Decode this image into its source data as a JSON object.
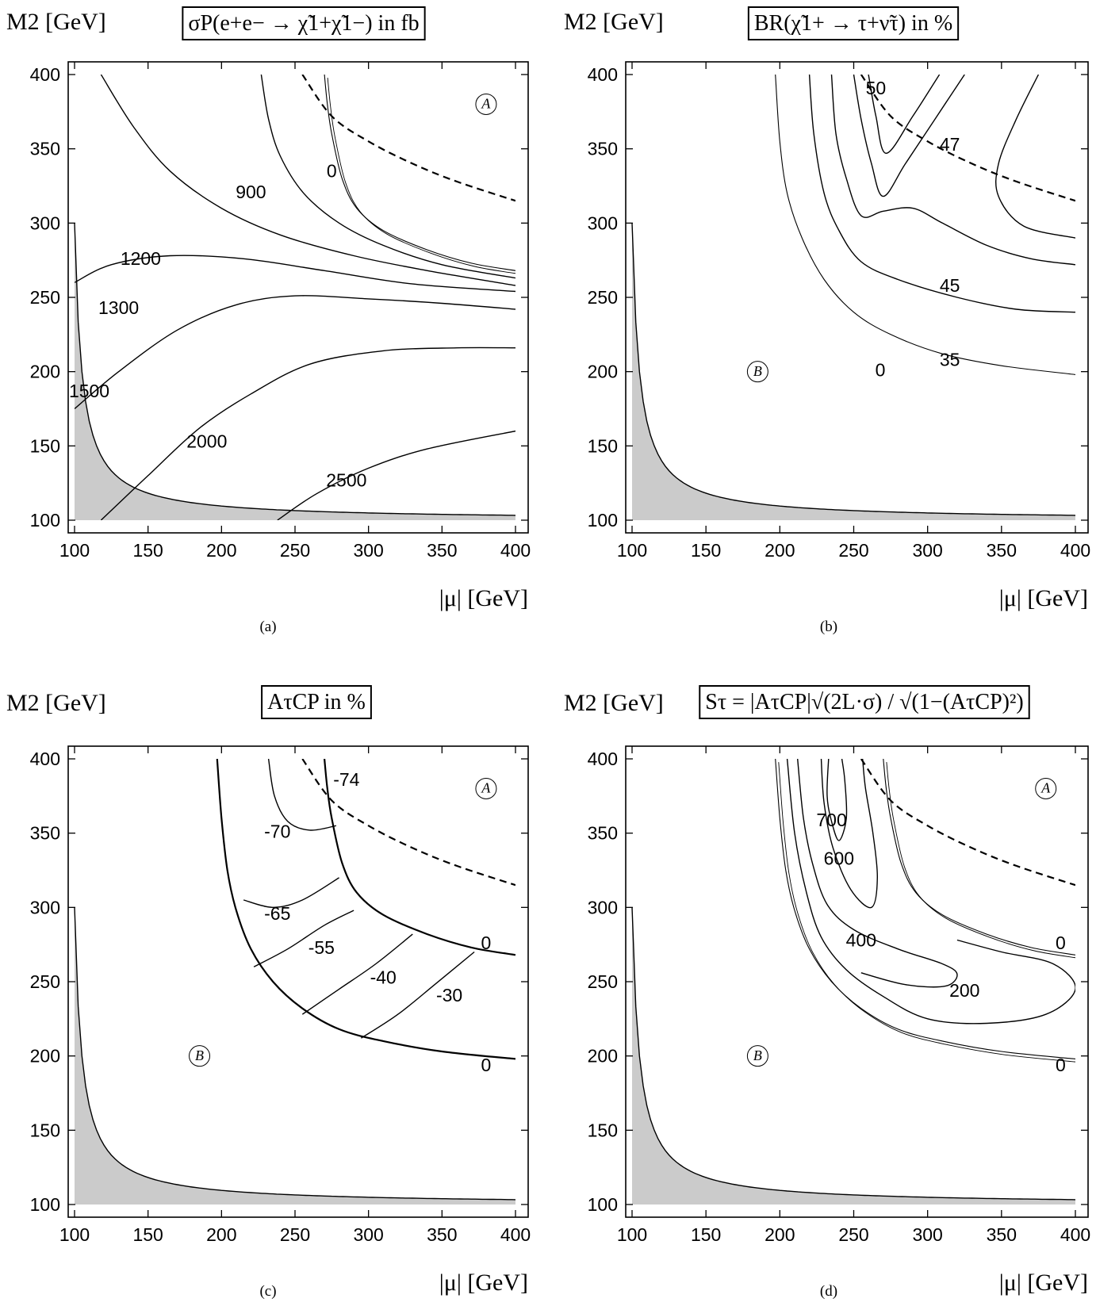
{
  "panels": [
    {
      "id": "a",
      "caption": "(a)",
      "title": "σP(e+e− → χ̃1+χ̃1−) in fb",
      "ylabel": "M2 [GeV]",
      "xlabel": "|μ| [GeV]",
      "region_marks": [
        "A"
      ],
      "contour_labels": [
        {
          "text": "0",
          "mu": 275,
          "m2": 334
        },
        {
          "text": "900",
          "mu": 220,
          "m2": 320
        },
        {
          "text": "1200",
          "mu": 145,
          "m2": 275
        },
        {
          "text": "1300",
          "mu": 130,
          "m2": 242
        },
        {
          "text": "1500",
          "mu": 110,
          "m2": 186
        },
        {
          "text": "2000",
          "mu": 190,
          "m2": 152
        },
        {
          "text": "2500",
          "mu": 285,
          "m2": 126
        }
      ]
    },
    {
      "id": "b",
      "caption": "(b)",
      "title": "BR(χ̃1+ → τ+ν̃τ) in %",
      "ylabel": "M2 [GeV]",
      "xlabel": "|μ| [GeV]",
      "region_marks": [
        "B"
      ],
      "contour_labels": [
        {
          "text": "50",
          "mu": 265,
          "m2": 390
        },
        {
          "text": "47",
          "mu": 315,
          "m2": 352
        },
        {
          "text": "45",
          "mu": 315,
          "m2": 257
        },
        {
          "text": "35",
          "mu": 315,
          "m2": 207
        },
        {
          "text": "0",
          "mu": 268,
          "m2": 200
        }
      ]
    },
    {
      "id": "c",
      "caption": "(c)",
      "title": "AτCP in %",
      "ylabel": "M2 [GeV]",
      "xlabel": "|μ| [GeV]",
      "region_marks": [
        "A",
        "B"
      ],
      "contour_labels": [
        {
          "text": "-74",
          "mu": 285,
          "m2": 385
        },
        {
          "text": "-70",
          "mu": 238,
          "m2": 350
        },
        {
          "text": "-65",
          "mu": 238,
          "m2": 295
        },
        {
          "text": "-55",
          "mu": 268,
          "m2": 272
        },
        {
          "text": "-40",
          "mu": 310,
          "m2": 252
        },
        {
          "text": "-30",
          "mu": 355,
          "m2": 240
        },
        {
          "text": "0",
          "mu": 380,
          "m2": 275
        },
        {
          "text": "0",
          "mu": 380,
          "m2": 193
        }
      ]
    },
    {
      "id": "d",
      "caption": "(d)",
      "title": "Sτ = |AτCP|√(2L·σ) / √(1−(AτCP)²)",
      "ylabel": "M2 [GeV]",
      "xlabel": "|μ| [GeV]",
      "region_marks": [
        "A",
        "B"
      ],
      "contour_labels": [
        {
          "text": "700",
          "mu": 235,
          "m2": 358
        },
        {
          "text": "600",
          "mu": 240,
          "m2": 332
        },
        {
          "text": "400",
          "mu": 255,
          "m2": 277
        },
        {
          "text": "200",
          "mu": 325,
          "m2": 243
        },
        {
          "text": "0",
          "mu": 390,
          "m2": 275
        },
        {
          "text": "0",
          "mu": 390,
          "m2": 193
        }
      ]
    }
  ],
  "chart_data": [
    {
      "type": "contour",
      "panel": "a",
      "x_axis": {
        "range": [
          100,
          400
        ],
        "ticks": [
          100,
          150,
          200,
          250,
          300,
          350,
          400
        ]
      },
      "y_axis": {
        "range": [
          100,
          400
        ],
        "ticks": [
          100,
          150,
          200,
          250,
          300,
          350,
          400
        ]
      },
      "excluded_region": "gray area below the boundary M2 ≈ 100 + 1000/(|μ|−95)",
      "dashed_curve": "dashed boundary from (255, 400) to (400, 315)",
      "levels": [
        0,
        900,
        1200,
        1300,
        1500,
        2000,
        2500
      ],
      "region_marks": [
        "A"
      ]
    },
    {
      "type": "contour",
      "panel": "b",
      "x_axis": {
        "range": [
          100,
          400
        ],
        "ticks": [
          100,
          150,
          200,
          250,
          300,
          350,
          400
        ]
      },
      "y_axis": {
        "range": [
          100,
          400
        ],
        "ticks": [
          100,
          150,
          200,
          250,
          300,
          350,
          400
        ]
      },
      "levels": [
        0,
        35,
        45,
        47,
        50
      ],
      "region_marks": [
        "B"
      ]
    },
    {
      "type": "contour",
      "panel": "c",
      "x_axis": {
        "range": [
          100,
          400
        ],
        "ticks": [
          100,
          150,
          200,
          250,
          300,
          350,
          400
        ]
      },
      "y_axis": {
        "range": [
          100,
          400
        ],
        "ticks": [
          100,
          150,
          200,
          250,
          300,
          350,
          400
        ]
      },
      "levels": [
        -74,
        -70,
        -65,
        -55,
        -40,
        -30,
        0
      ],
      "region_marks": [
        "A",
        "B"
      ]
    },
    {
      "type": "contour",
      "panel": "d",
      "x_axis": {
        "range": [
          100,
          400
        ],
        "ticks": [
          100,
          150,
          200,
          250,
          300,
          350,
          400
        ]
      },
      "y_axis": {
        "range": [
          100,
          400
        ],
        "ticks": [
          100,
          150,
          200,
          250,
          300,
          350,
          400
        ]
      },
      "levels": [
        0,
        200,
        400,
        600,
        700
      ],
      "region_marks": [
        "A",
        "B"
      ]
    }
  ]
}
